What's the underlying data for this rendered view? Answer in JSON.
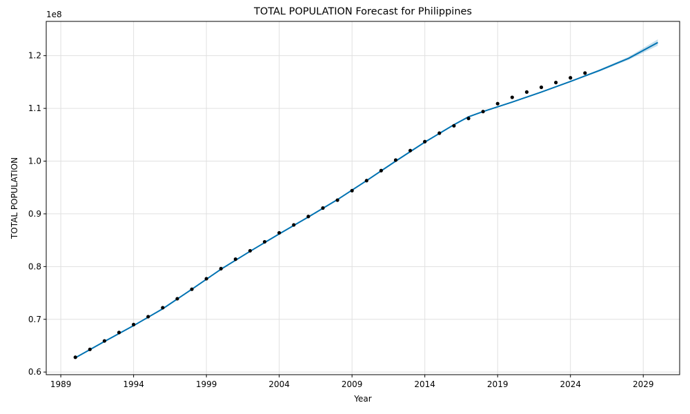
{
  "chart_data": {
    "type": "line",
    "title": "TOTAL POPULATION Forecast for Philippines",
    "xlabel": "Year",
    "ylabel": "TOTAL POPULATION",
    "y_offset_label": "1e8",
    "y_scale": 100000000,
    "xlim": [
      1988.0,
      2031.5
    ],
    "ylim": [
      0.595,
      1.265
    ],
    "x_ticks": [
      1989,
      1994,
      1999,
      2004,
      2009,
      2014,
      2019,
      2024,
      2029
    ],
    "x_tick_labels": [
      "1989",
      "1994",
      "1999",
      "2004",
      "2009",
      "2014",
      "2019",
      "2024",
      "2029"
    ],
    "y_ticks": [
      0.6,
      0.7,
      0.8,
      0.9,
      1.0,
      1.1,
      1.2
    ],
    "y_tick_labels": [
      "0.6",
      "0.7",
      "0.8",
      "0.9",
      "1.0",
      "1.1",
      "1.2"
    ],
    "grid": true,
    "series": [
      {
        "kind": "observed",
        "color": "#000000",
        "x": [
          1990,
          1991,
          1992,
          1993,
          1994,
          1995,
          1996,
          1997,
          1998,
          1999,
          2000,
          2001,
          2002,
          2003,
          2004,
          2005,
          2006,
          2007,
          2008,
          2009,
          2010,
          2011,
          2012,
          2013,
          2014,
          2015,
          2016,
          2017,
          2018,
          2019,
          2020,
          2021,
          2022,
          2023,
          2024,
          2025
        ],
        "y": [
          0.628,
          0.643,
          0.659,
          0.675,
          0.69,
          0.705,
          0.722,
          0.739,
          0.757,
          0.777,
          0.796,
          0.814,
          0.83,
          0.847,
          0.864,
          0.879,
          0.895,
          0.911,
          0.926,
          0.944,
          0.963,
          0.982,
          1.002,
          1.02,
          1.037,
          1.053,
          1.067,
          1.081,
          1.094,
          1.109,
          1.121,
          1.131,
          1.14,
          1.149,
          1.158,
          1.167
        ]
      },
      {
        "kind": "forecast",
        "color": "#0072B2",
        "x": [
          1990,
          1992,
          1994,
          1996,
          1998,
          2000,
          2002,
          2004,
          2006,
          2008,
          2010,
          2012,
          2014,
          2016,
          2017,
          2018,
          2020,
          2022,
          2024,
          2026,
          2028,
          2030
        ],
        "y": [
          0.627,
          0.658,
          0.688,
          0.72,
          0.757,
          0.795,
          0.829,
          0.862,
          0.894,
          0.927,
          0.963,
          1.0,
          1.036,
          1.069,
          1.084,
          1.094,
          1.112,
          1.131,
          1.151,
          1.172,
          1.195,
          1.225
        ],
        "lower": [
          0.627,
          0.658,
          0.688,
          0.72,
          0.757,
          0.795,
          0.829,
          0.862,
          0.894,
          0.927,
          0.963,
          1.0,
          1.036,
          1.069,
          1.084,
          1.094,
          1.112,
          1.131,
          1.15,
          1.17,
          1.192,
          1.219
        ],
        "upper": [
          0.627,
          0.658,
          0.688,
          0.72,
          0.757,
          0.795,
          0.829,
          0.862,
          0.894,
          0.927,
          0.963,
          1.0,
          1.036,
          1.069,
          1.084,
          1.094,
          1.112,
          1.131,
          1.152,
          1.174,
          1.198,
          1.231
        ]
      }
    ]
  }
}
